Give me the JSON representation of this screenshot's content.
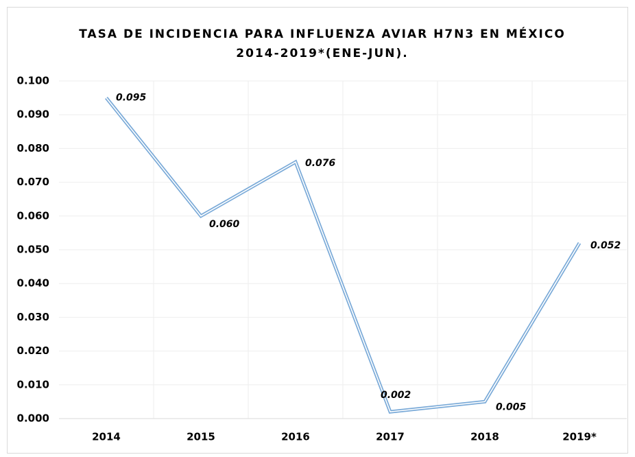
{
  "chart_data": {
    "type": "line",
    "title": [
      "TASA DE INCIDENCIA PARA INFLUENZA AVIAR H7N3 EN MÉXICO",
      "2014-2019*(ENE-JUN)."
    ],
    "categories": [
      "2014",
      "2015",
      "2016",
      "2017",
      "2018",
      "2019*"
    ],
    "series": [
      {
        "color": "#7aaad8",
        "values": [
          0.095,
          0.06,
          0.076,
          0.002,
          0.005,
          0.052
        ],
        "value_labels": [
          "0.095",
          "0.060",
          "0.076",
          "0.002",
          "0.005",
          "0.052"
        ]
      }
    ],
    "ylim": [
      0,
      0.1
    ],
    "yticks": [
      {
        "value": 0,
        "label": "0.000"
      },
      {
        "value": 0.01,
        "label": "0.010"
      },
      {
        "value": 0.02,
        "label": "0.020"
      },
      {
        "value": 0.03,
        "label": "0.030"
      },
      {
        "value": 0.04,
        "label": "0.040"
      },
      {
        "value": 0.05,
        "label": "0.050"
      },
      {
        "value": 0.06,
        "label": "0.060"
      },
      {
        "value": 0.07,
        "label": "0.070"
      },
      {
        "value": 0.08,
        "label": "0.080"
      },
      {
        "value": 0.09,
        "label": "0.090"
      },
      {
        "value": 0.1,
        "label": "0.100"
      }
    ],
    "grid": true
  }
}
